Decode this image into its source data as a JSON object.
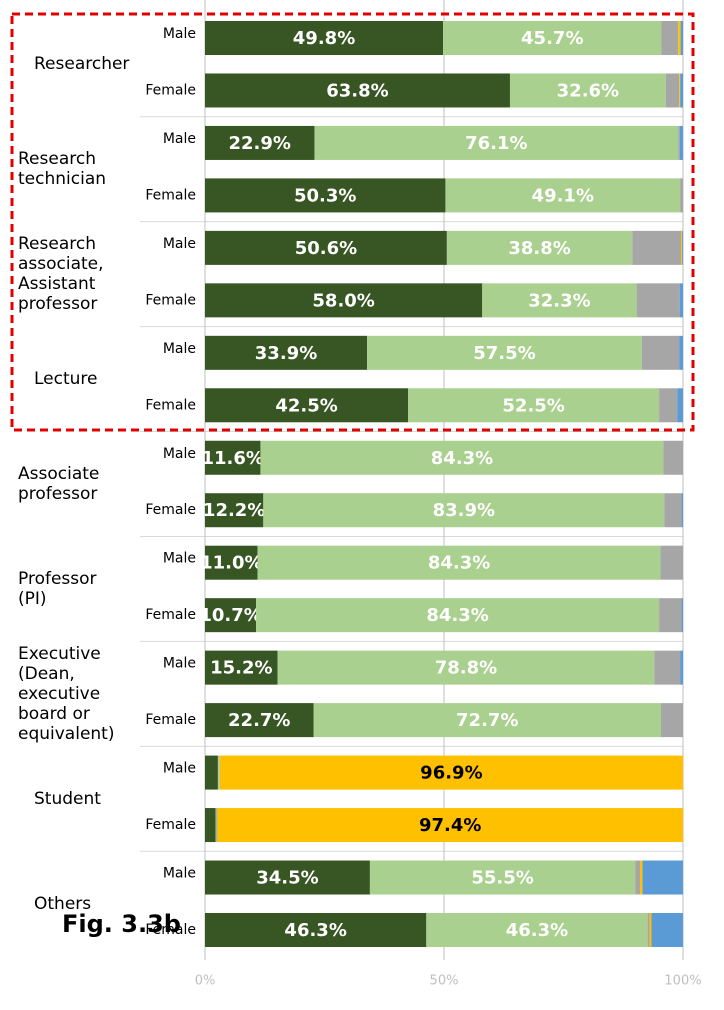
{
  "chart_data": {
    "type": "stacked-bar-horizontal",
    "title": "Fig. 3.3b",
    "groups": [
      "Researcher",
      "Research\ntechnician",
      "Research\nassociate,\nAssistant\nprofessor",
      "Lecture",
      "Associate\nprofessor",
      "Professor\n(PI)",
      "Executive\n(Dean,\nexecutive\nboard       or\nequivalent)",
      "Student",
      "Others"
    ],
    "categories": [
      "Male",
      "Female",
      "Male",
      "Female",
      "Male",
      "Female",
      "Male",
      "Female",
      "Male",
      "Female",
      "Male",
      "Female",
      "Male",
      "Female",
      "Male",
      "Female",
      "Male",
      "Female"
    ],
    "series": [
      {
        "color": "#375623",
        "label_color": "#ffffff",
        "values": [
          49.8,
          63.8,
          22.9,
          50.3,
          50.6,
          58.0,
          33.9,
          42.5,
          11.6,
          12.2,
          11.0,
          10.7,
          15.2,
          22.7,
          2.7,
          2.2,
          34.5,
          46.3
        ],
        "value_labels": [
          "49.8%",
          "63.8%",
          "22.9%",
          "50.3%",
          "50.6%",
          "58.0%",
          "33.9%",
          "42.5%",
          "11.6%",
          "12.2%",
          "11.0%",
          "10.7%",
          "15.2%",
          "22.7%",
          null,
          null,
          "34.5%",
          "46.3%"
        ]
      },
      {
        "color": "#a9d08e",
        "label_color": "#ffffff",
        "values": [
          45.7,
          32.6,
          76.1,
          49.1,
          38.8,
          32.3,
          57.5,
          52.5,
          84.3,
          83.9,
          84.3,
          84.3,
          78.8,
          72.7,
          0.3,
          0.2,
          55.5,
          46.3
        ],
        "value_labels": [
          "45.7%",
          "32.6%",
          "76.1%",
          "49.1%",
          "38.8%",
          "32.3%",
          "57.5%",
          "52.5%",
          "84.3%",
          "83.9%",
          "84.3%",
          "84.3%",
          "78.8%",
          "72.7%",
          null,
          null,
          "55.5%",
          "46.3%"
        ]
      },
      {
        "color": "#a6a6a6",
        "label_color": "#000000",
        "values": [
          3.5,
          2.8,
          0.3,
          0.6,
          10.2,
          9.0,
          7.8,
          3.8,
          4.1,
          3.6,
          4.7,
          4.7,
          5.4,
          4.6,
          0.1,
          0.2,
          1.0,
          0.4
        ]
      },
      {
        "color": "#ffc000",
        "label_color": "#000000",
        "values": [
          0.5,
          0.2,
          0,
          0,
          0.2,
          0,
          0,
          0,
          0,
          0,
          0,
          0,
          0,
          0,
          96.9,
          97.4,
          0.5,
          0.4
        ],
        "value_labels": [
          null,
          null,
          null,
          null,
          null,
          null,
          null,
          null,
          null,
          null,
          null,
          null,
          null,
          null,
          "96.9%",
          "97.4%",
          null,
          null
        ]
      },
      {
        "color": "#5b9bd5",
        "label_color": "#ffffff",
        "values": [
          0.5,
          0.6,
          0.7,
          0,
          0.2,
          0.7,
          0.8,
          1.2,
          0,
          0.3,
          0,
          0.3,
          0.6,
          0,
          0,
          0,
          8.5,
          6.6
        ]
      }
    ],
    "xlim": [
      0,
      100
    ],
    "xticks": [
      {
        "value": 0,
        "label": "0%"
      },
      {
        "value": 50,
        "label": "50%"
      },
      {
        "value": 100,
        "label": "100%"
      }
    ],
    "grid": true
  }
}
